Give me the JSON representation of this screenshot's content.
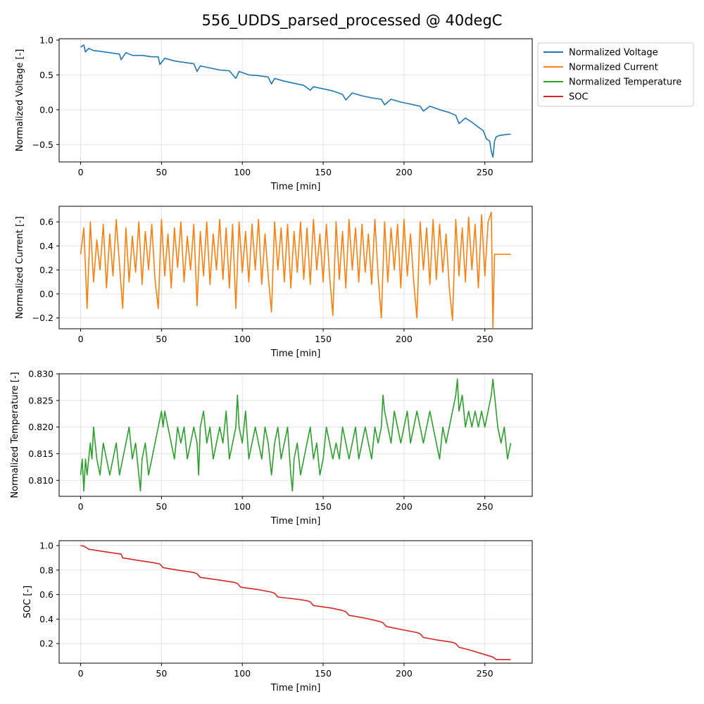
{
  "title": "556_UDDS_parsed_processed @ 40degC",
  "legend": {
    "placement": "outside-right-top",
    "entries": [
      {
        "label": "Normalized Voltage",
        "color": "#1f77b4"
      },
      {
        "label": "Normalized Current",
        "color": "#ff7f0e"
      },
      {
        "label": "Normalized Temperature",
        "color": "#2ca02c"
      },
      {
        "label": "SOC",
        "color": "#d62728"
      }
    ]
  },
  "chart_data": [
    {
      "type": "line",
      "xlabel": "Time [min]",
      "ylabel": "Normalized Voltage [-]",
      "xlim": [
        -13.3,
        279.3
      ],
      "ylim": [
        -0.75,
        1.02
      ],
      "xticks": [
        0,
        50,
        100,
        150,
        200,
        250
      ],
      "yticks": [
        -0.5,
        0.0,
        0.5,
        1.0
      ],
      "ytick_labels": [
        "−0.5",
        "0.0",
        "0.5",
        "1.0"
      ],
      "grid": true,
      "color": "#1f77b4",
      "series": [
        {
          "x": [
            0,
            2,
            3,
            5,
            8,
            12,
            18,
            24,
            25,
            28,
            32,
            38,
            44,
            48,
            49,
            52,
            58,
            64,
            70,
            72,
            74,
            80,
            86,
            92,
            96,
            98,
            104,
            110,
            116,
            118,
            120,
            126,
            132,
            138,
            142,
            144,
            150,
            156,
            162,
            164,
            168,
            174,
            180,
            186,
            188,
            192,
            198,
            204,
            210,
            212,
            216,
            222,
            228,
            232,
            234,
            238,
            242,
            246,
            249,
            251,
            253,
            254,
            255,
            256,
            257,
            259,
            262,
            266
          ],
          "y": [
            0.9,
            0.93,
            0.83,
            0.88,
            0.85,
            0.84,
            0.82,
            0.8,
            0.72,
            0.82,
            0.78,
            0.78,
            0.76,
            0.76,
            0.65,
            0.74,
            0.7,
            0.68,
            0.66,
            0.55,
            0.63,
            0.6,
            0.57,
            0.56,
            0.45,
            0.55,
            0.5,
            0.49,
            0.47,
            0.37,
            0.45,
            0.41,
            0.38,
            0.35,
            0.28,
            0.33,
            0.3,
            0.27,
            0.22,
            0.14,
            0.24,
            0.2,
            0.17,
            0.15,
            0.07,
            0.15,
            0.11,
            0.08,
            0.05,
            -0.02,
            0.05,
            0.0,
            -0.04,
            -0.08,
            -0.2,
            -0.12,
            -0.18,
            -0.25,
            -0.3,
            -0.42,
            -0.45,
            -0.6,
            -0.68,
            -0.45,
            -0.39,
            -0.37,
            -0.36,
            -0.35
          ]
        }
      ]
    },
    {
      "type": "line",
      "xlabel": "Time [min]",
      "ylabel": "Normalized Current [-]",
      "xlim": [
        -13.3,
        279.3
      ],
      "ylim": [
        -0.29,
        0.73
      ],
      "xticks": [
        0,
        50,
        100,
        150,
        200,
        250
      ],
      "yticks": [
        -0.2,
        0.0,
        0.2,
        0.4,
        0.6
      ],
      "ytick_labels": [
        "−0.2",
        "0.0",
        "0.2",
        "0.4",
        "0.6"
      ],
      "grid": true,
      "color": "#ff7f0e",
      "series": [
        {
          "x": [
            0,
            2,
            4,
            6,
            8,
            10,
            12,
            14,
            16,
            18,
            20,
            22,
            24,
            26,
            28,
            30,
            32,
            34,
            36,
            38,
            40,
            42,
            44,
            46,
            48,
            50,
            52,
            54,
            56,
            58,
            60,
            62,
            64,
            66,
            68,
            70,
            72,
            74,
            76,
            78,
            80,
            82,
            84,
            86,
            88,
            90,
            92,
            94,
            96,
            98,
            100,
            102,
            104,
            106,
            108,
            110,
            112,
            114,
            116,
            118,
            120,
            122,
            124,
            126,
            128,
            130,
            132,
            134,
            136,
            138,
            140,
            142,
            144,
            146,
            148,
            150,
            152,
            154,
            156,
            158,
            160,
            162,
            164,
            166,
            168,
            170,
            172,
            174,
            176,
            178,
            180,
            182,
            184,
            186,
            188,
            190,
            192,
            194,
            196,
            198,
            200,
            202,
            204,
            206,
            208,
            210,
            212,
            214,
            216,
            218,
            220,
            222,
            224,
            226,
            228,
            230,
            232,
            234,
            236,
            238,
            240,
            242,
            244,
            246,
            248,
            250,
            252,
            254,
            255,
            256,
            266
          ],
          "y": [
            0.33,
            0.55,
            -0.12,
            0.6,
            0.1,
            0.45,
            0.2,
            0.58,
            0.05,
            0.5,
            0.15,
            0.62,
            0.25,
            -0.12,
            0.55,
            0.1,
            0.48,
            0.18,
            0.6,
            0.08,
            0.52,
            0.2,
            0.58,
            0.12,
            -0.12,
            0.62,
            0.15,
            0.5,
            0.05,
            0.55,
            0.22,
            0.6,
            0.1,
            0.48,
            0.2,
            0.58,
            -0.1,
            0.52,
            0.15,
            0.6,
            0.08,
            0.5,
            0.2,
            0.62,
            0.12,
            0.55,
            0.05,
            0.58,
            -0.12,
            0.6,
            0.18,
            0.52,
            0.1,
            0.58,
            0.2,
            0.62,
            0.08,
            0.5,
            0.15,
            -0.15,
            0.6,
            0.2,
            0.55,
            0.1,
            0.58,
            0.05,
            0.52,
            0.18,
            0.6,
            0.12,
            0.55,
            0.08,
            0.62,
            0.2,
            0.5,
            0.1,
            0.58,
            0.15,
            -0.18,
            0.6,
            0.12,
            0.52,
            0.05,
            0.62,
            0.2,
            0.55,
            0.1,
            0.58,
            0.18,
            0.5,
            0.08,
            0.62,
            0.15,
            -0.2,
            0.6,
            0.1,
            0.55,
            0.2,
            0.58,
            0.05,
            0.62,
            0.15,
            0.5,
            0.1,
            -0.2,
            0.6,
            0.2,
            0.55,
            0.08,
            0.62,
            0.12,
            0.58,
            0.18,
            0.5,
            0.05,
            -0.22,
            0.62,
            0.15,
            0.55,
            0.1,
            0.64,
            0.2,
            0.58,
            0.05,
            0.66,
            0.15,
            0.6,
            0.68,
            -0.28,
            0.33,
            0.33
          ]
        }
      ]
    },
    {
      "type": "line",
      "xlabel": "Time [min]",
      "ylabel": "Normalized Temperature [-]",
      "xlim": [
        -13.3,
        279.3
      ],
      "ylim": [
        0.807,
        0.83
      ],
      "xticks": [
        0,
        50,
        100,
        150,
        200,
        250
      ],
      "yticks": [
        0.81,
        0.815,
        0.82,
        0.825,
        0.83
      ],
      "ytick_labels": [
        "0.810",
        "0.815",
        "0.820",
        "0.825",
        "0.830"
      ],
      "grid": true,
      "color": "#2ca02c",
      "series": [
        {
          "x": [
            0,
            1,
            2,
            3,
            4,
            5,
            6,
            7,
            8,
            9,
            10,
            12,
            14,
            16,
            18,
            20,
            22,
            24,
            26,
            28,
            30,
            32,
            34,
            36,
            37,
            38,
            40,
            42,
            44,
            46,
            48,
            50,
            51,
            52,
            54,
            56,
            58,
            60,
            62,
            64,
            66,
            68,
            70,
            72,
            73,
            74,
            76,
            78,
            80,
            82,
            84,
            86,
            88,
            90,
            92,
            94,
            96,
            97,
            98,
            100,
            102,
            104,
            106,
            108,
            110,
            112,
            114,
            116,
            118,
            120,
            122,
            124,
            126,
            128,
            130,
            131,
            132,
            134,
            136,
            138,
            140,
            142,
            144,
            146,
            148,
            150,
            152,
            154,
            156,
            158,
            160,
            162,
            164,
            166,
            168,
            170,
            172,
            174,
            176,
            178,
            180,
            182,
            184,
            186,
            187,
            188,
            190,
            192,
            194,
            196,
            198,
            200,
            202,
            204,
            206,
            208,
            210,
            212,
            214,
            216,
            218,
            220,
            222,
            224,
            226,
            228,
            230,
            232,
            233,
            234,
            236,
            238,
            240,
            242,
            244,
            246,
            248,
            250,
            252,
            254,
            255,
            256,
            258,
            260,
            262,
            264,
            266
          ],
          "y": [
            0.811,
            0.814,
            0.808,
            0.814,
            0.811,
            0.814,
            0.817,
            0.814,
            0.82,
            0.817,
            0.814,
            0.811,
            0.817,
            0.814,
            0.811,
            0.814,
            0.817,
            0.811,
            0.814,
            0.817,
            0.82,
            0.814,
            0.817,
            0.811,
            0.808,
            0.814,
            0.817,
            0.811,
            0.814,
            0.817,
            0.82,
            0.823,
            0.82,
            0.823,
            0.82,
            0.817,
            0.814,
            0.82,
            0.817,
            0.82,
            0.814,
            0.817,
            0.82,
            0.817,
            0.811,
            0.82,
            0.823,
            0.817,
            0.82,
            0.814,
            0.817,
            0.82,
            0.817,
            0.823,
            0.814,
            0.817,
            0.82,
            0.826,
            0.82,
            0.817,
            0.823,
            0.814,
            0.817,
            0.82,
            0.817,
            0.814,
            0.82,
            0.817,
            0.811,
            0.817,
            0.82,
            0.814,
            0.817,
            0.82,
            0.811,
            0.808,
            0.814,
            0.817,
            0.811,
            0.814,
            0.817,
            0.82,
            0.814,
            0.817,
            0.811,
            0.814,
            0.82,
            0.817,
            0.814,
            0.817,
            0.814,
            0.82,
            0.817,
            0.814,
            0.817,
            0.82,
            0.814,
            0.817,
            0.82,
            0.817,
            0.814,
            0.82,
            0.817,
            0.82,
            0.826,
            0.823,
            0.82,
            0.817,
            0.823,
            0.82,
            0.817,
            0.82,
            0.823,
            0.817,
            0.82,
            0.823,
            0.82,
            0.817,
            0.82,
            0.823,
            0.82,
            0.817,
            0.814,
            0.82,
            0.817,
            0.82,
            0.823,
            0.826,
            0.829,
            0.823,
            0.826,
            0.82,
            0.823,
            0.82,
            0.823,
            0.82,
            0.823,
            0.82,
            0.823,
            0.826,
            0.829,
            0.826,
            0.82,
            0.817,
            0.82,
            0.814,
            0.817
          ]
        }
      ]
    },
    {
      "type": "line",
      "xlabel": "Time [min]",
      "ylabel": "SOC [-]",
      "xlim": [
        -13.3,
        279.3
      ],
      "ylim": [
        0.04,
        1.04
      ],
      "xticks": [
        0,
        50,
        100,
        150,
        200,
        250
      ],
      "yticks": [
        0.2,
        0.4,
        0.6,
        0.8,
        1.0
      ],
      "ytick_labels": [
        "0.2",
        "0.4",
        "0.6",
        "0.8",
        "1.0"
      ],
      "grid": true,
      "color": "#d62728",
      "series": [
        {
          "x": [
            0,
            2,
            4,
            5,
            10,
            20,
            25,
            26,
            35,
            45,
            49,
            51,
            60,
            70,
            72,
            74,
            85,
            95,
            97,
            99,
            110,
            118,
            120,
            122,
            135,
            140,
            142,
            144,
            155,
            162,
            164,
            166,
            175,
            185,
            187,
            189,
            200,
            208,
            210,
            212,
            220,
            230,
            232,
            234,
            240,
            250,
            255,
            257,
            266
          ],
          "y": [
            1.0,
            0.995,
            0.98,
            0.97,
            0.96,
            0.94,
            0.93,
            0.9,
            0.88,
            0.86,
            0.85,
            0.82,
            0.8,
            0.78,
            0.77,
            0.74,
            0.72,
            0.7,
            0.69,
            0.66,
            0.64,
            0.62,
            0.61,
            0.58,
            0.56,
            0.55,
            0.54,
            0.51,
            0.49,
            0.47,
            0.46,
            0.43,
            0.41,
            0.38,
            0.37,
            0.34,
            0.31,
            0.29,
            0.28,
            0.25,
            0.23,
            0.21,
            0.2,
            0.17,
            0.15,
            0.11,
            0.09,
            0.07,
            0.07
          ]
        }
      ]
    }
  ]
}
